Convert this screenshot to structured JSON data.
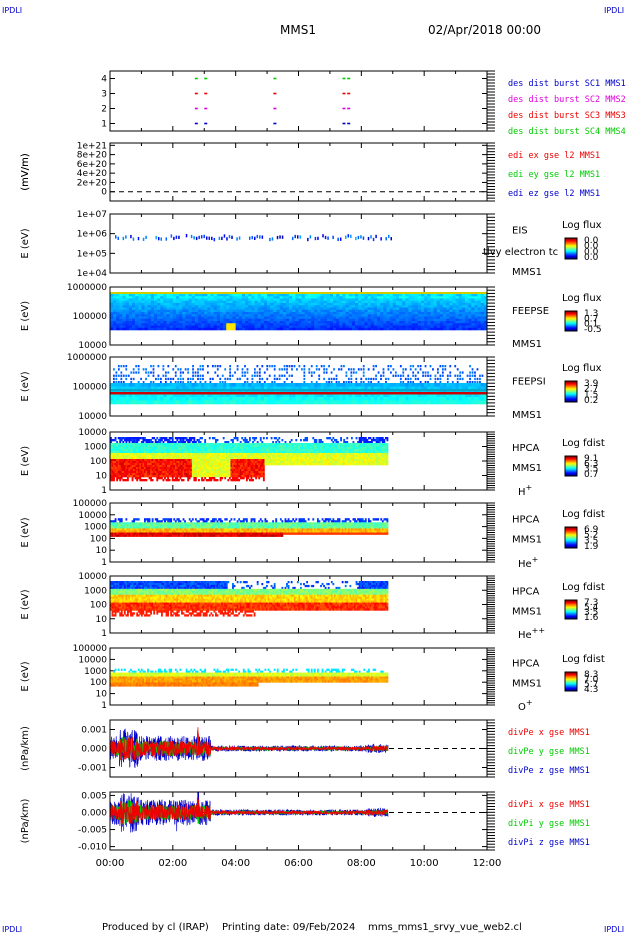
{
  "header": {
    "logo_left": "IPDLI",
    "logo_right": "IPDLI",
    "mission": "MMS1",
    "date": "02/Apr/2018 00:00"
  },
  "footer": {
    "logo_left": "IPDLI",
    "logo_right": "IPDLI",
    "produced_by": "Produced by cl (IRAP)",
    "printing_date": "Printing date: 09/Feb/2024",
    "script_name": "mms_mms1_srvy_vue_web2.cl"
  },
  "colors": {
    "blue": "#0000cc",
    "magenta": "#e000e0",
    "red": "#ee0000",
    "green": "#00cc00",
    "axis": "#000000"
  },
  "chart_data": {
    "type": "mixed",
    "x_axis": {
      "range_hours": [
        0,
        12
      ],
      "tick_labels": [
        "00:00",
        "02:00",
        "04:00",
        "06:00",
        "08:00",
        "10:00",
        "12:00"
      ],
      "data_end_hours": 8.85
    },
    "panels": [
      {
        "id": "burst",
        "type": "scatter",
        "ylabel": "",
        "ylim": [
          0.5,
          4.5
        ],
        "yticks": [
          "1",
          "2",
          "3",
          "4"
        ],
        "series": [
          {
            "name": "des dist burst SC1 MMS1",
            "color": "#0000cc",
            "y": 1,
            "x_hours": [
              2.7,
              3.0,
              5.2,
              7.4,
              7.55
            ]
          },
          {
            "name": "des dist burst SC2 MMS2",
            "color": "#e000e0",
            "y": 2,
            "x_hours": [
              2.7,
              3.0,
              5.2,
              7.4,
              7.55
            ]
          },
          {
            "name": "des dist burst SC3 MMS3",
            "color": "#ee0000",
            "y": 3,
            "x_hours": [
              2.7,
              3.0,
              5.2,
              7.4,
              7.55
            ]
          },
          {
            "name": "des dist burst SC4 MMS4",
            "color": "#00cc00",
            "y": 4,
            "x_hours": [
              2.7,
              3.0,
              5.2,
              7.4,
              7.55
            ]
          }
        ]
      },
      {
        "id": "edi",
        "type": "line",
        "ylabel": "(mV/m)",
        "ylim": [
          -2e+20,
          1.05e+21
        ],
        "yticks": [
          "0",
          "2e+20",
          "4e+20",
          "6e+20",
          "8e+20",
          "1e+21"
        ],
        "dashed_zero": true,
        "series": [
          {
            "name": "edi ex gse l2 MMS1",
            "color": "#ee0000"
          },
          {
            "name": "edi ey gse l2 MMS1",
            "color": "#00cc00"
          },
          {
            "name": "edi ez gse l2 MMS1",
            "color": "#0000cc"
          }
        ]
      },
      {
        "id": "eis",
        "type": "heatmap",
        "ylabel": "E (eV)",
        "yticks": [
          "1e+04",
          "1e+05",
          "1e+06",
          "1e+07"
        ],
        "instrument": "EIS",
        "spacecraft": "MMS1",
        "overlay_text": "tlvy electron tc",
        "colorbar_title": "Log flux",
        "colorbar_ticks": [
          "0.0",
          "0.0",
          "0.0",
          "0.0"
        ]
      },
      {
        "id": "feepse",
        "type": "heatmap",
        "ylabel": "E (eV)",
        "yticks": [
          "10000",
          "100000",
          "1000000"
        ],
        "instrument": "FEEPSE",
        "spacecraft": "MMS1",
        "colorbar_title": "Log flux",
        "colorbar_ticks": [
          "1.3",
          "0.7",
          "0.1",
          "-0.5"
        ]
      },
      {
        "id": "feepsi",
        "type": "heatmap",
        "ylabel": "E (eV)",
        "yticks": [
          "10000",
          "100000",
          "1000000"
        ],
        "instrument": "FEEPSI",
        "spacecraft": "MMS1",
        "colorbar_title": "Log flux",
        "colorbar_ticks": [
          "3.9",
          "2.7",
          "1.5",
          "0.2"
        ]
      },
      {
        "id": "hpca_h",
        "type": "heatmap",
        "ylabel": "E (eV)",
        "yticks": [
          "1",
          "10",
          "100",
          "1000",
          "10000"
        ],
        "instrument": "HPCA",
        "spacecraft": "MMS1",
        "species_base": "H",
        "species_sup": "+",
        "colorbar_title": "Log fdist",
        "colorbar_ticks": [
          "9.1",
          "6.3",
          "3.5",
          "0.7"
        ]
      },
      {
        "id": "hpca_he1",
        "type": "heatmap",
        "ylabel": "E (eV)",
        "yticks": [
          "1",
          "10",
          "100",
          "1000",
          "10000",
          "100000"
        ],
        "instrument": "HPCA",
        "spacecraft": "MMS1",
        "species_base": "He",
        "species_sup": "+",
        "colorbar_title": "Log fdist",
        "colorbar_ticks": [
          "6.9",
          "5.2",
          "3.5",
          "1.9"
        ]
      },
      {
        "id": "hpca_he2",
        "type": "heatmap",
        "ylabel": "E (eV)",
        "yticks": [
          "1",
          "10",
          "100",
          "1000",
          "10000"
        ],
        "instrument": "HPCA",
        "spacecraft": "MMS1",
        "species_base": "He",
        "species_sup": "++",
        "colorbar_title": "Log fdist",
        "colorbar_ticks": [
          "7.3",
          "5.4",
          "3.5",
          "1.6"
        ]
      },
      {
        "id": "hpca_o",
        "type": "heatmap",
        "ylabel": "E (eV)",
        "yticks": [
          "1",
          "10",
          "100",
          "1000",
          "10000",
          "100000"
        ],
        "instrument": "HPCA",
        "spacecraft": "MMS1",
        "species_base": "O",
        "species_sup": "+",
        "colorbar_title": "Log fdist",
        "colorbar_ticks": [
          "8.3",
          "7.0",
          "5.7",
          "4.3"
        ]
      },
      {
        "id": "divpe",
        "type": "line",
        "ylabel": "(nPa/km)",
        "ylim": [
          -0.0015,
          0.0015
        ],
        "yticks": [
          "-0.001",
          "0.000",
          "0.001"
        ],
        "dashed_zero": true,
        "series": [
          {
            "name": "divPe x gse MMS1",
            "color": "#ee0000"
          },
          {
            "name": "divPe y gse MMS1",
            "color": "#00cc00"
          },
          {
            "name": "divPe z gse MMS1",
            "color": "#0000cc"
          }
        ]
      },
      {
        "id": "divpi",
        "type": "line",
        "ylabel": "(nPa/km)",
        "ylim": [
          -0.011,
          0.006
        ],
        "yticks": [
          "-0.010",
          "-0.005",
          "0.000",
          "0.005"
        ],
        "dashed_zero": true,
        "series": [
          {
            "name": "divPi x gse MMS1",
            "color": "#ee0000"
          },
          {
            "name": "divPi y gse MMS1",
            "color": "#00cc00"
          },
          {
            "name": "divPi z gse MMS1",
            "color": "#0000cc"
          }
        ]
      }
    ]
  }
}
